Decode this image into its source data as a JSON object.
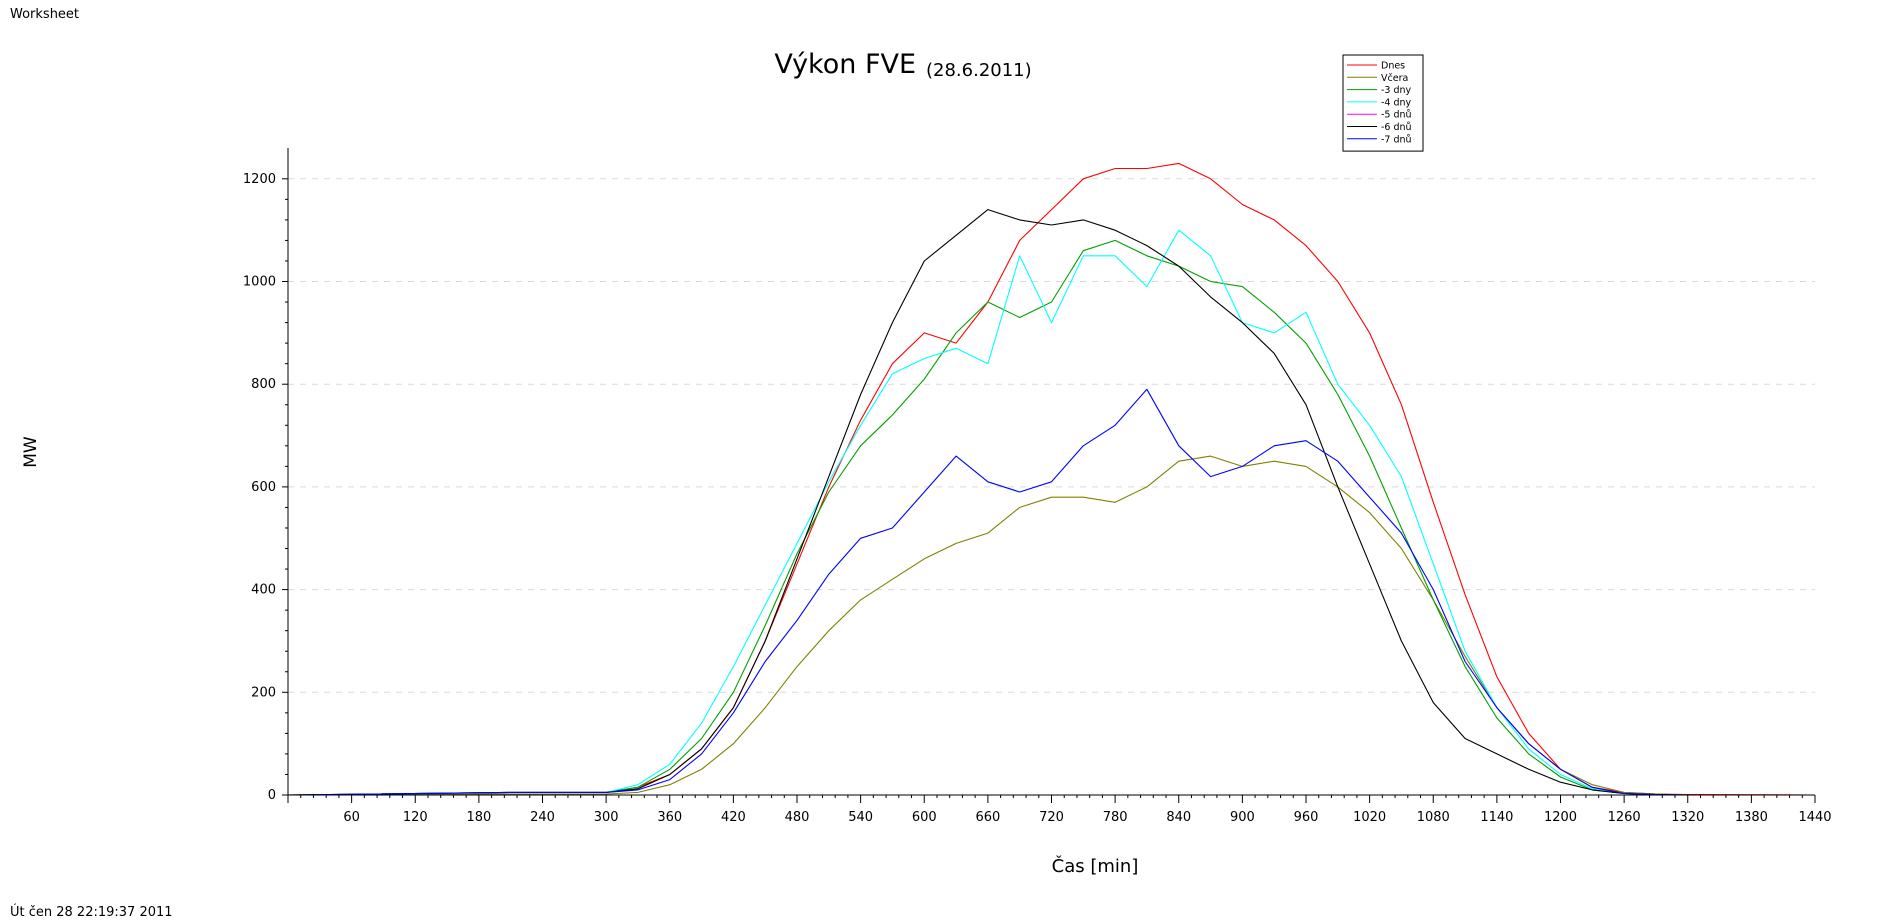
{
  "page": {
    "header_label": "Worksheet",
    "footer_label": "Út čen 28 22:19:37 2011"
  },
  "chart_data": {
    "type": "line",
    "title": "Výkon FVE",
    "subtitle": "(28.6.2011)",
    "xlabel": "Čas [min]",
    "ylabel": "MW",
    "xlim": [
      0,
      1440
    ],
    "ylim": [
      0,
      1260
    ],
    "xticks": [
      60,
      120,
      180,
      240,
      300,
      360,
      420,
      480,
      540,
      600,
      660,
      720,
      780,
      840,
      900,
      960,
      1020,
      1080,
      1140,
      1200,
      1260,
      1320,
      1380,
      1440
    ],
    "yticks": [
      0,
      200,
      400,
      600,
      800,
      1000,
      1200
    ],
    "grid": "horizontal-dashed",
    "legend_placement": "top-right",
    "x": [
      0,
      210,
      300,
      330,
      360,
      390,
      420,
      450,
      480,
      510,
      540,
      570,
      600,
      630,
      660,
      690,
      720,
      750,
      780,
      810,
      840,
      870,
      900,
      930,
      960,
      990,
      1020,
      1050,
      1080,
      1110,
      1140,
      1170,
      1200,
      1230,
      1260,
      1290,
      1320,
      1440
    ],
    "series": [
      {
        "name": "Dnes",
        "color": "#ff0000",
        "values": [
          0,
          5,
          5,
          15,
          40,
          90,
          170,
          300,
          450,
          600,
          730,
          840,
          900,
          880,
          960,
          1080,
          1140,
          1200,
          1220,
          1220,
          1230,
          1200,
          1150,
          1120,
          1070,
          1000,
          900,
          760,
          570,
          390,
          230,
          120,
          50,
          15,
          5,
          2,
          1,
          0
        ]
      },
      {
        "name": "Včera",
        "color": "#808000",
        "values": [
          0,
          2,
          2,
          5,
          20,
          50,
          100,
          170,
          250,
          320,
          380,
          420,
          460,
          490,
          510,
          560,
          580,
          580,
          570,
          600,
          650,
          660,
          640,
          650,
          640,
          600,
          550,
          480,
          380,
          270,
          170,
          100,
          50,
          20,
          5,
          2,
          0,
          0
        ]
      },
      {
        "name": "-3 dny",
        "color": "#00a000",
        "values": [
          0,
          5,
          5,
          15,
          50,
          110,
          200,
          330,
          470,
          590,
          680,
          740,
          810,
          900,
          960,
          930,
          960,
          1060,
          1080,
          1050,
          1030,
          1000,
          990,
          940,
          880,
          780,
          660,
          520,
          380,
          250,
          150,
          80,
          35,
          10,
          3,
          1,
          0,
          0
        ]
      },
      {
        "name": "-4 dny",
        "color": "#00ffff",
        "values": [
          0,
          5,
          5,
          20,
          60,
          140,
          250,
          370,
          490,
          610,
          720,
          820,
          850,
          870,
          840,
          1050,
          920,
          1050,
          1050,
          990,
          1100,
          1050,
          920,
          900,
          940,
          800,
          720,
          620,
          450,
          280,
          170,
          90,
          40,
          12,
          3,
          1,
          0,
          0
        ]
      },
      {
        "name": "-5 dnů",
        "color": "#ff00ff",
        "values": [
          0,
          0,
          0,
          0,
          0,
          0,
          0,
          0,
          0,
          0,
          0,
          0,
          0,
          0,
          0,
          0,
          0,
          0,
          0,
          0,
          0,
          0,
          0,
          0,
          0,
          0,
          0,
          0,
          0,
          0,
          0,
          0,
          0,
          0,
          0,
          0,
          0,
          0
        ]
      },
      {
        "name": "-6 dnů",
        "color": "#000000",
        "values": [
          0,
          5,
          5,
          12,
          40,
          90,
          170,
          300,
          460,
          620,
          780,
          920,
          1040,
          1090,
          1140,
          1120,
          1110,
          1120,
          1100,
          1070,
          1030,
          970,
          920,
          860,
          760,
          600,
          450,
          300,
          180,
          110,
          80,
          50,
          25,
          10,
          3,
          1,
          0,
          0
        ]
      },
      {
        "name": "-7 dnů",
        "color": "#0000ff",
        "values": [
          0,
          5,
          5,
          10,
          30,
          80,
          160,
          260,
          340,
          430,
          500,
          520,
          590,
          660,
          610,
          590,
          610,
          680,
          720,
          790,
          680,
          620,
          640,
          680,
          690,
          650,
          580,
          510,
          400,
          260,
          170,
          100,
          50,
          15,
          3,
          1,
          0,
          0
        ]
      }
    ]
  }
}
